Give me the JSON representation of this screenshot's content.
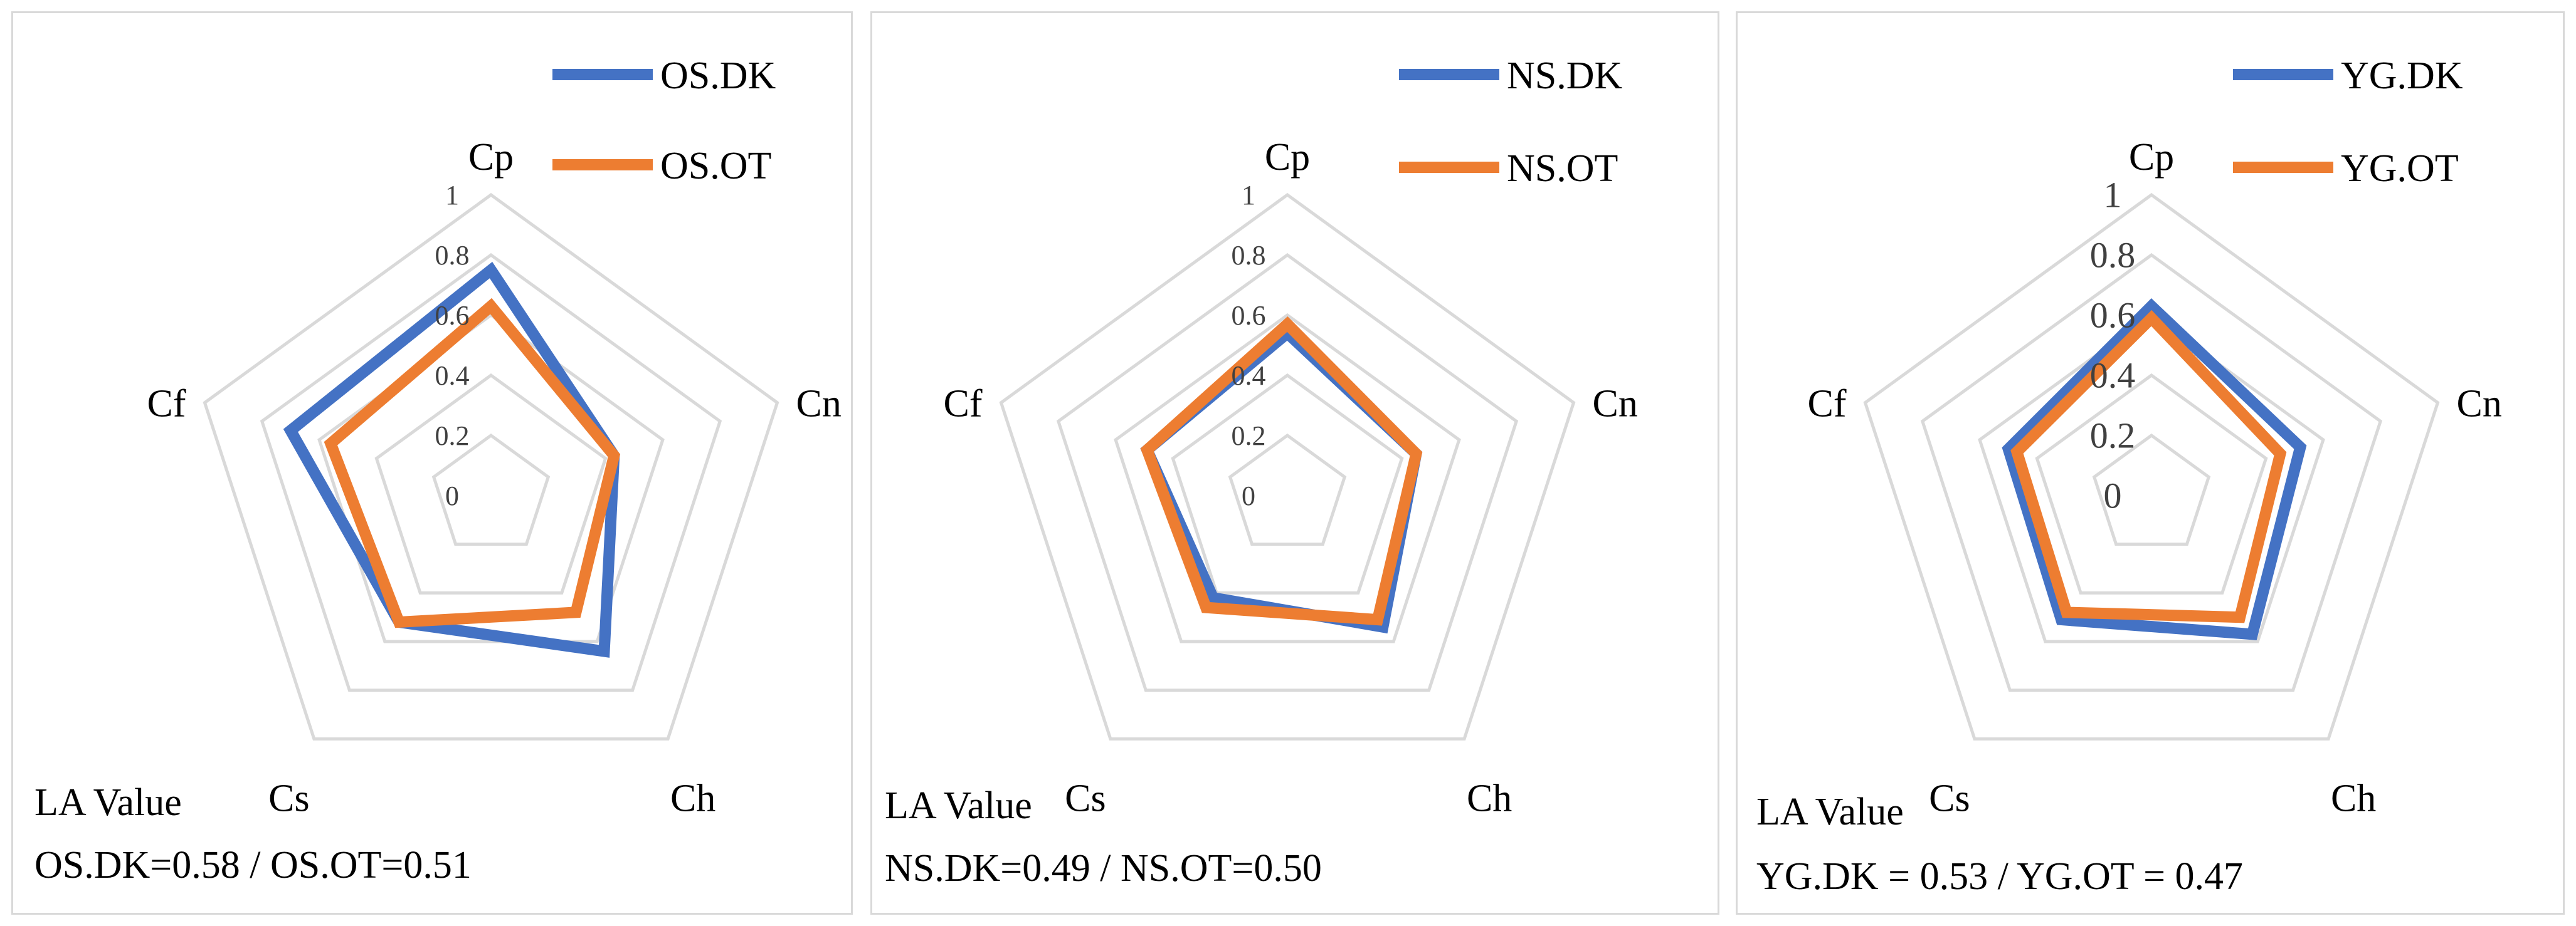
{
  "chart_data": [
    {
      "type": "radar",
      "categories": [
        "Cp",
        "Cn",
        "Ch",
        "Cs",
        "Cf"
      ],
      "rlim": [
        0,
        1
      ],
      "rticks": [
        "0",
        "0.2",
        "0.4",
        "0.6",
        "0.8",
        "1"
      ],
      "grid": true,
      "legend_position": "top-right",
      "series": [
        {
          "name": "OS.DK",
          "color": "#4472C4",
          "values": [
            0.75,
            0.43,
            0.64,
            0.52,
            0.7
          ]
        },
        {
          "name": "OS.OT",
          "color": "#ED7D31",
          "values": [
            0.63,
            0.43,
            0.48,
            0.52,
            0.56
          ]
        }
      ],
      "annotation_title": "LA Value",
      "annotation_text": "OS.DK=0.58 / OS.OT=0.51"
    },
    {
      "type": "radar",
      "categories": [
        "Cp",
        "Cn",
        "Ch",
        "Cs",
        "Cf"
      ],
      "rlim": [
        0,
        1
      ],
      "rticks": [
        "0",
        "0.2",
        "0.4",
        "0.6",
        "0.8",
        "1"
      ],
      "grid": true,
      "legend_position": "top-right",
      "series": [
        {
          "name": "NS.DK",
          "color": "#4472C4",
          "values": [
            0.54,
            0.45,
            0.54,
            0.42,
            0.49
          ]
        },
        {
          "name": "NS.OT",
          "color": "#ED7D31",
          "values": [
            0.57,
            0.45,
            0.51,
            0.46,
            0.49
          ]
        }
      ],
      "annotation_title": "LA Value",
      "annotation_text": "NS.DK=0.49 / NS.OT=0.50"
    },
    {
      "type": "radar",
      "categories": [
        "Cp",
        "Cn",
        "Ch",
        "Cs",
        "Cf"
      ],
      "rlim": [
        0,
        1
      ],
      "rticks": [
        "0",
        "0.2",
        "0.4",
        "0.6",
        "0.8",
        "1"
      ],
      "grid": true,
      "legend_position": "top-right",
      "series": [
        {
          "name": "YG.DK",
          "color": "#4472C4",
          "values": [
            0.63,
            0.52,
            0.57,
            0.51,
            0.5
          ]
        },
        {
          "name": "YG.OT",
          "color": "#ED7D31",
          "values": [
            0.59,
            0.45,
            0.5,
            0.48,
            0.47
          ]
        }
      ],
      "annotation_title": "LA Value",
      "annotation_text": "YG.DK = 0.53 / YG.OT = 0.47"
    }
  ]
}
